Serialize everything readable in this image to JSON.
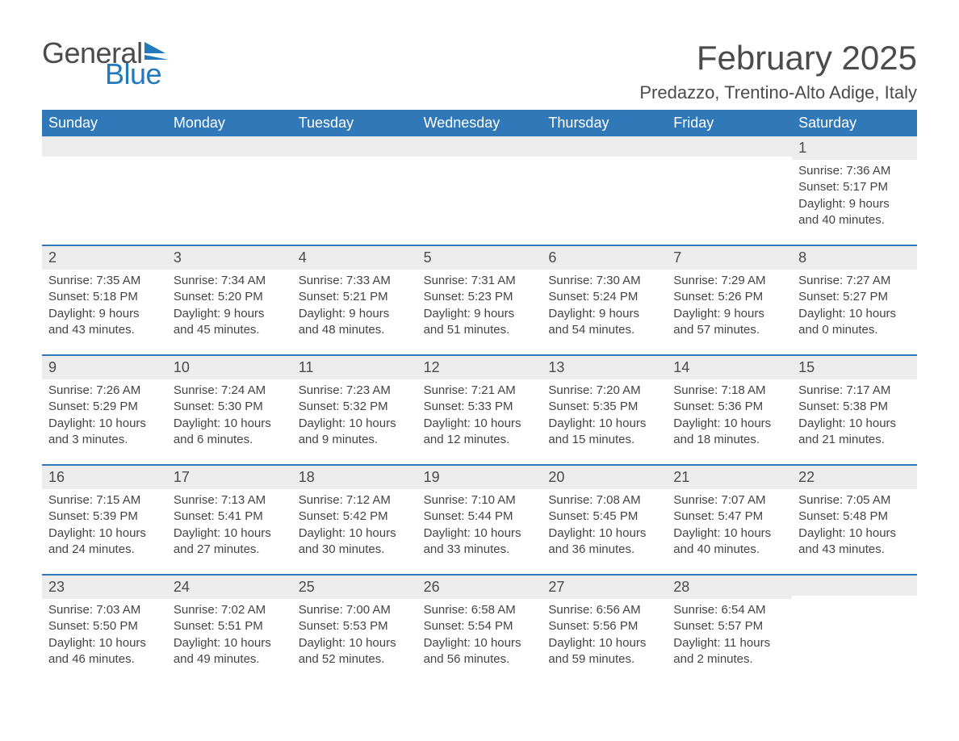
{
  "logo": {
    "word1": "General",
    "word2": "Blue",
    "word1_color": "#4b4b4b",
    "word2_color": "#2279bb",
    "flag_color": "#2279bb"
  },
  "title": {
    "month": "February 2025",
    "location": "Predazzo, Trentino-Alto Adige, Italy",
    "month_fontsize": 42,
    "location_fontsize": 22,
    "text_color": "#4b4b4b"
  },
  "calendar": {
    "header_bg": "#3078b8",
    "header_text_color": "#ffffff",
    "divider_color": "#3078b8",
    "daynum_bg": "#ececec",
    "body_text_color": "#444444",
    "day_headers": [
      "Sunday",
      "Monday",
      "Tuesday",
      "Wednesday",
      "Thursday",
      "Friday",
      "Saturday"
    ],
    "weeks": [
      [
        {
          "n": "",
          "sunrise": "",
          "sunset": "",
          "daylight": ""
        },
        {
          "n": "",
          "sunrise": "",
          "sunset": "",
          "daylight": ""
        },
        {
          "n": "",
          "sunrise": "",
          "sunset": "",
          "daylight": ""
        },
        {
          "n": "",
          "sunrise": "",
          "sunset": "",
          "daylight": ""
        },
        {
          "n": "",
          "sunrise": "",
          "sunset": "",
          "daylight": ""
        },
        {
          "n": "",
          "sunrise": "",
          "sunset": "",
          "daylight": ""
        },
        {
          "n": "1",
          "sunrise": "Sunrise: 7:36 AM",
          "sunset": "Sunset: 5:17 PM",
          "daylight": "Daylight: 9 hours and 40 minutes."
        }
      ],
      [
        {
          "n": "2",
          "sunrise": "Sunrise: 7:35 AM",
          "sunset": "Sunset: 5:18 PM",
          "daylight": "Daylight: 9 hours and 43 minutes."
        },
        {
          "n": "3",
          "sunrise": "Sunrise: 7:34 AM",
          "sunset": "Sunset: 5:20 PM",
          "daylight": "Daylight: 9 hours and 45 minutes."
        },
        {
          "n": "4",
          "sunrise": "Sunrise: 7:33 AM",
          "sunset": "Sunset: 5:21 PM",
          "daylight": "Daylight: 9 hours and 48 minutes."
        },
        {
          "n": "5",
          "sunrise": "Sunrise: 7:31 AM",
          "sunset": "Sunset: 5:23 PM",
          "daylight": "Daylight: 9 hours and 51 minutes."
        },
        {
          "n": "6",
          "sunrise": "Sunrise: 7:30 AM",
          "sunset": "Sunset: 5:24 PM",
          "daylight": "Daylight: 9 hours and 54 minutes."
        },
        {
          "n": "7",
          "sunrise": "Sunrise: 7:29 AM",
          "sunset": "Sunset: 5:26 PM",
          "daylight": "Daylight: 9 hours and 57 minutes."
        },
        {
          "n": "8",
          "sunrise": "Sunrise: 7:27 AM",
          "sunset": "Sunset: 5:27 PM",
          "daylight": "Daylight: 10 hours and 0 minutes."
        }
      ],
      [
        {
          "n": "9",
          "sunrise": "Sunrise: 7:26 AM",
          "sunset": "Sunset: 5:29 PM",
          "daylight": "Daylight: 10 hours and 3 minutes."
        },
        {
          "n": "10",
          "sunrise": "Sunrise: 7:24 AM",
          "sunset": "Sunset: 5:30 PM",
          "daylight": "Daylight: 10 hours and 6 minutes."
        },
        {
          "n": "11",
          "sunrise": "Sunrise: 7:23 AM",
          "sunset": "Sunset: 5:32 PM",
          "daylight": "Daylight: 10 hours and 9 minutes."
        },
        {
          "n": "12",
          "sunrise": "Sunrise: 7:21 AM",
          "sunset": "Sunset: 5:33 PM",
          "daylight": "Daylight: 10 hours and 12 minutes."
        },
        {
          "n": "13",
          "sunrise": "Sunrise: 7:20 AM",
          "sunset": "Sunset: 5:35 PM",
          "daylight": "Daylight: 10 hours and 15 minutes."
        },
        {
          "n": "14",
          "sunrise": "Sunrise: 7:18 AM",
          "sunset": "Sunset: 5:36 PM",
          "daylight": "Daylight: 10 hours and 18 minutes."
        },
        {
          "n": "15",
          "sunrise": "Sunrise: 7:17 AM",
          "sunset": "Sunset: 5:38 PM",
          "daylight": "Daylight: 10 hours and 21 minutes."
        }
      ],
      [
        {
          "n": "16",
          "sunrise": "Sunrise: 7:15 AM",
          "sunset": "Sunset: 5:39 PM",
          "daylight": "Daylight: 10 hours and 24 minutes."
        },
        {
          "n": "17",
          "sunrise": "Sunrise: 7:13 AM",
          "sunset": "Sunset: 5:41 PM",
          "daylight": "Daylight: 10 hours and 27 minutes."
        },
        {
          "n": "18",
          "sunrise": "Sunrise: 7:12 AM",
          "sunset": "Sunset: 5:42 PM",
          "daylight": "Daylight: 10 hours and 30 minutes."
        },
        {
          "n": "19",
          "sunrise": "Sunrise: 7:10 AM",
          "sunset": "Sunset: 5:44 PM",
          "daylight": "Daylight: 10 hours and 33 minutes."
        },
        {
          "n": "20",
          "sunrise": "Sunrise: 7:08 AM",
          "sunset": "Sunset: 5:45 PM",
          "daylight": "Daylight: 10 hours and 36 minutes."
        },
        {
          "n": "21",
          "sunrise": "Sunrise: 7:07 AM",
          "sunset": "Sunset: 5:47 PM",
          "daylight": "Daylight: 10 hours and 40 minutes."
        },
        {
          "n": "22",
          "sunrise": "Sunrise: 7:05 AM",
          "sunset": "Sunset: 5:48 PM",
          "daylight": "Daylight: 10 hours and 43 minutes."
        }
      ],
      [
        {
          "n": "23",
          "sunrise": "Sunrise: 7:03 AM",
          "sunset": "Sunset: 5:50 PM",
          "daylight": "Daylight: 10 hours and 46 minutes."
        },
        {
          "n": "24",
          "sunrise": "Sunrise: 7:02 AM",
          "sunset": "Sunset: 5:51 PM",
          "daylight": "Daylight: 10 hours and 49 minutes."
        },
        {
          "n": "25",
          "sunrise": "Sunrise: 7:00 AM",
          "sunset": "Sunset: 5:53 PM",
          "daylight": "Daylight: 10 hours and 52 minutes."
        },
        {
          "n": "26",
          "sunrise": "Sunrise: 6:58 AM",
          "sunset": "Sunset: 5:54 PM",
          "daylight": "Daylight: 10 hours and 56 minutes."
        },
        {
          "n": "27",
          "sunrise": "Sunrise: 6:56 AM",
          "sunset": "Sunset: 5:56 PM",
          "daylight": "Daylight: 10 hours and 59 minutes."
        },
        {
          "n": "28",
          "sunrise": "Sunrise: 6:54 AM",
          "sunset": "Sunset: 5:57 PM",
          "daylight": "Daylight: 11 hours and 2 minutes."
        },
        {
          "n": "",
          "sunrise": "",
          "sunset": "",
          "daylight": ""
        }
      ]
    ]
  }
}
